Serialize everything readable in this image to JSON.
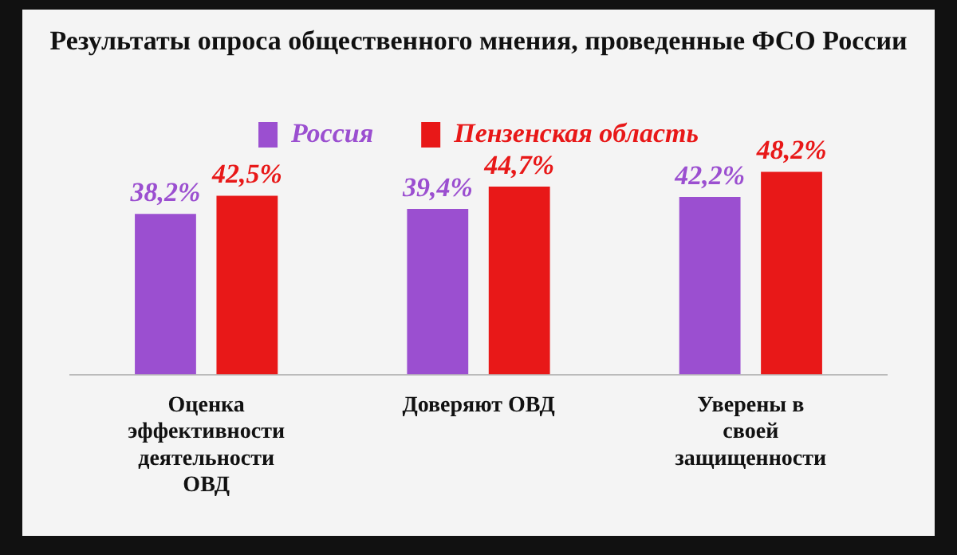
{
  "chart_data": {
    "type": "bar",
    "title": "Результаты опроса общественного мнения, проведенные ФСО России",
    "categories": [
      "Оценка эффективности деятельности ОВД",
      "Доверяют ОВД",
      "Уверены в своей защищенности"
    ],
    "series": [
      {
        "name": "Россия",
        "color": "#9b4fd0",
        "values": [
          38.2,
          39.4,
          42.2
        ],
        "value_labels": [
          "38,2%",
          "39,4%",
          "42,2%"
        ]
      },
      {
        "name": "Пензенская область",
        "color": "#e81818",
        "values": [
          42.5,
          44.7,
          48.2
        ],
        "value_labels": [
          "42,5%",
          "44,7%",
          "48,2%"
        ]
      }
    ],
    "legend": "top",
    "grid": false,
    "tick_labels": "x"
  }
}
